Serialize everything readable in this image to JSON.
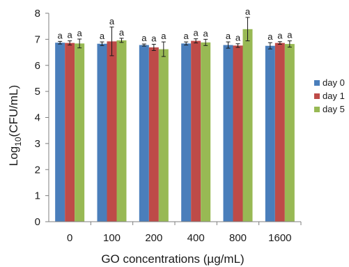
{
  "chart_data": {
    "type": "bar",
    "categories": [
      "0",
      "100",
      "200",
      "400",
      "800",
      "1600"
    ],
    "series": [
      {
        "name": "day 0",
        "color": "#4a7ebb",
        "values": [
          6.87,
          6.83,
          6.78,
          6.84,
          6.78,
          6.75
        ],
        "errors": [
          0.05,
          0.07,
          0.04,
          0.06,
          0.12,
          0.12
        ],
        "labels": [
          "a",
          "a",
          "a",
          "a",
          "a",
          "a"
        ]
      },
      {
        "name": "day 1",
        "color": "#be4b48",
        "values": [
          6.86,
          6.92,
          6.69,
          6.94,
          6.76,
          6.86
        ],
        "errors": [
          0.08,
          0.55,
          0.12,
          0.08,
          0.07,
          0.05
        ],
        "labels": [
          "a",
          "a",
          "a",
          "a",
          "a",
          "a"
        ]
      },
      {
        "name": "day 5",
        "color": "#98b954",
        "values": [
          6.84,
          6.96,
          6.62,
          6.88,
          7.39,
          6.82
        ],
        "errors": [
          0.17,
          0.08,
          0.28,
          0.12,
          0.45,
          0.12
        ],
        "labels": [
          "a",
          "a",
          "a",
          "a",
          "a",
          "a"
        ]
      }
    ],
    "xlabel": "GO concentrations (µg/mL)",
    "ylabel": {
      "prefix": "Log",
      "subscript": "10",
      "suffix": "(CFU/mL)"
    },
    "ylim": [
      0,
      8
    ],
    "yticks": [
      "0",
      "1",
      "2",
      "3",
      "4",
      "5",
      "6",
      "7",
      "8"
    ],
    "grid": false,
    "legend_position": "right"
  }
}
